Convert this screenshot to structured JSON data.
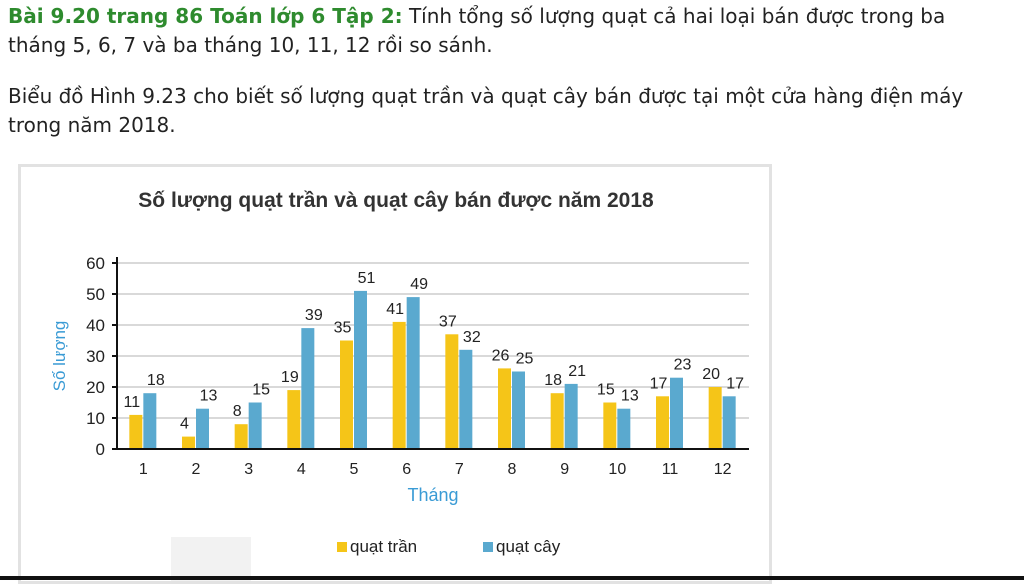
{
  "exercise": {
    "heading": "Bài 9.20 trang 86 Toán lớp 6 Tập 2:",
    "question": " Tính tổng số lượng quạt cả hai loại bán được trong ba tháng 5, 6, 7 và ba tháng 10, 11, 12 rồi so sánh.",
    "context": "Biểu đồ Hình 9.23 cho biết số lượng quạt trần và quạt cây bán được tại một cửa hàng điện máy trong năm 2018."
  },
  "chart_data": {
    "type": "bar",
    "title": "Số lượng quạt trần và quạt cây bán được năm 2018",
    "xlabel": "Tháng",
    "ylabel": "Số lượng",
    "ylim": [
      0,
      60
    ],
    "yticks": [
      0,
      10,
      20,
      30,
      40,
      50,
      60
    ],
    "categories": [
      "1",
      "2",
      "3",
      "4",
      "5",
      "6",
      "7",
      "8",
      "9",
      "10",
      "11",
      "12"
    ],
    "series": [
      {
        "name": "quạt trần",
        "color": "#f5c518",
        "values": [
          11,
          4,
          8,
          19,
          35,
          41,
          37,
          26,
          18,
          15,
          17,
          20
        ]
      },
      {
        "name": "quạt cây",
        "color": "#5aa9cf",
        "values": [
          18,
          13,
          15,
          39,
          51,
          49,
          32,
          25,
          21,
          13,
          23,
          17
        ]
      }
    ],
    "grid": true,
    "legend": "bottom",
    "colors": {
      "title": "#333333",
      "axis_label": "#3a9bd5",
      "grid": "#d9d9d9",
      "axis": "#111111"
    }
  }
}
